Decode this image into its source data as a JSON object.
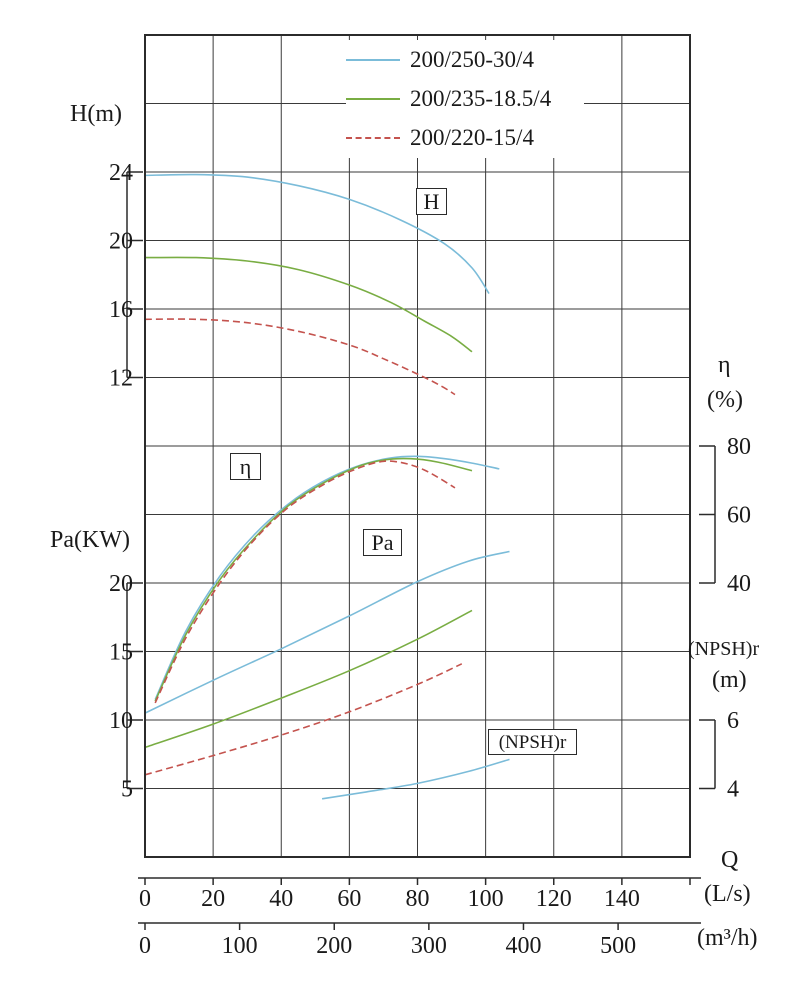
{
  "colors": {
    "blue": "#7bbcd9",
    "green": "#79ad43",
    "red": "#c4534e",
    "grid": "#3a3a3a",
    "frame": "#2b2b2b",
    "text": "#1a1a1a"
  },
  "legend": {
    "items": [
      {
        "label": "200/250-30/4",
        "color_key": "blue",
        "dashed": false
      },
      {
        "label": "200/235-18.5/4",
        "color_key": "green",
        "dashed": false
      },
      {
        "label": "200/220-15/4",
        "color_key": "red",
        "dashed": true
      }
    ]
  },
  "axes": {
    "h": {
      "title": "H(m)",
      "ticks": [
        24,
        20,
        16,
        12
      ]
    },
    "pa": {
      "title": "Pa(KW)",
      "ticks": [
        20,
        15,
        10,
        5
      ]
    },
    "eta": {
      "title": "η",
      "unit": "(%)",
      "ticks": [
        80,
        60,
        40
      ]
    },
    "npsh": {
      "title": "(NPSH)r",
      "unit": "(m)",
      "ticks": [
        6,
        4
      ]
    },
    "q": {
      "title": "Q",
      "unit_ls": "(L/s)",
      "unit_m3h": "(m³/h)",
      "ls_ticks": [
        0,
        20,
        40,
        60,
        80,
        100,
        120,
        140
      ],
      "m3h_ticks": [
        0,
        100,
        200,
        300,
        400,
        500
      ]
    }
  },
  "curve_labels": {
    "h": "H",
    "eta": "η",
    "pa": "Pa",
    "npsh": "(NPSH)r"
  },
  "chart_data": {
    "type": "line",
    "title": "Pump performance curves",
    "xlabel": "Q",
    "x_units": [
      "L/s",
      "m³/h"
    ],
    "x_range_ls": [
      0,
      160
    ],
    "grid": true,
    "y_scales": {
      "H": {
        "label": "H(m)",
        "visible_ticks": [
          24,
          20,
          16,
          12
        ]
      },
      "eta": {
        "label": "η(%)",
        "visible_ticks": [
          80,
          60,
          40
        ]
      },
      "Pa": {
        "label": "Pa(KW)",
        "visible_ticks": [
          20,
          15,
          10,
          5
        ]
      },
      "NPSH": {
        "label": "(NPSH)r(m)",
        "visible_ticks": [
          6,
          4
        ]
      }
    },
    "series": [
      {
        "group": "H",
        "axis": "H",
        "model": "200/250-30/4",
        "color_key": "blue",
        "dashed": false,
        "points": [
          [
            0,
            23.8
          ],
          [
            15,
            23.85
          ],
          [
            30,
            23.7
          ],
          [
            45,
            23.2
          ],
          [
            60,
            22.4
          ],
          [
            75,
            21.2
          ],
          [
            88,
            19.8
          ],
          [
            96,
            18.4
          ],
          [
            101,
            16.9
          ]
        ]
      },
      {
        "group": "H",
        "axis": "H",
        "model": "200/235-18.5/4",
        "color_key": "green",
        "dashed": false,
        "points": [
          [
            0,
            19.0
          ],
          [
            15,
            19.0
          ],
          [
            30,
            18.8
          ],
          [
            45,
            18.3
          ],
          [
            60,
            17.4
          ],
          [
            72,
            16.4
          ],
          [
            82,
            15.3
          ],
          [
            90,
            14.4
          ],
          [
            96,
            13.5
          ]
        ]
      },
      {
        "group": "H",
        "axis": "H",
        "model": "200/220-15/4",
        "color_key": "red",
        "dashed": true,
        "points": [
          [
            0,
            15.4
          ],
          [
            15,
            15.4
          ],
          [
            30,
            15.2
          ],
          [
            45,
            14.7
          ],
          [
            60,
            13.9
          ],
          [
            70,
            13.1
          ],
          [
            80,
            12.2
          ],
          [
            87,
            11.5
          ],
          [
            91,
            11.0
          ]
        ]
      },
      {
        "group": "eta",
        "axis": "eta",
        "model": "200/250-30/4",
        "color_key": "blue",
        "dashed": false,
        "points": [
          [
            3,
            6
          ],
          [
            12,
            26
          ],
          [
            22,
            42
          ],
          [
            32,
            54
          ],
          [
            42,
            63
          ],
          [
            52,
            69.5
          ],
          [
            62,
            74
          ],
          [
            72,
            76.5
          ],
          [
            80,
            77
          ],
          [
            88,
            76.3
          ],
          [
            96,
            75
          ],
          [
            104,
            73.3
          ]
        ]
      },
      {
        "group": "eta",
        "axis": "eta",
        "model": "200/235-18.5/4",
        "color_key": "green",
        "dashed": false,
        "points": [
          [
            3,
            5.5
          ],
          [
            12,
            25
          ],
          [
            22,
            41
          ],
          [
            32,
            53
          ],
          [
            42,
            62.5
          ],
          [
            52,
            69
          ],
          [
            62,
            73.8
          ],
          [
            70,
            75.9
          ],
          [
            78,
            76.3
          ],
          [
            86,
            75.3
          ],
          [
            96,
            72.8
          ]
        ]
      },
      {
        "group": "eta",
        "axis": "eta",
        "model": "200/220-15/4",
        "color_key": "red",
        "dashed": true,
        "points": [
          [
            3,
            5
          ],
          [
            12,
            24
          ],
          [
            22,
            40
          ],
          [
            32,
            52.5
          ],
          [
            42,
            62
          ],
          [
            52,
            68.5
          ],
          [
            60,
            72.5
          ],
          [
            68,
            75.2
          ],
          [
            74,
            75.4
          ],
          [
            82,
            73
          ],
          [
            91,
            67.8
          ]
        ]
      },
      {
        "group": "Pa",
        "axis": "Pa",
        "model": "200/250-30/4",
        "color_key": "blue",
        "dashed": false,
        "points": [
          [
            0,
            10.5
          ],
          [
            20,
            12.9
          ],
          [
            40,
            15.2
          ],
          [
            60,
            17.6
          ],
          [
            80,
            20.1
          ],
          [
            95,
            21.6
          ],
          [
            107,
            22.3
          ]
        ]
      },
      {
        "group": "Pa",
        "axis": "Pa",
        "model": "200/235-18.5/4",
        "color_key": "green",
        "dashed": false,
        "points": [
          [
            0,
            8.0
          ],
          [
            20,
            9.7
          ],
          [
            40,
            11.6
          ],
          [
            60,
            13.6
          ],
          [
            80,
            15.9
          ],
          [
            96,
            18.0
          ]
        ]
      },
      {
        "group": "Pa",
        "axis": "Pa",
        "model": "200/220-15/4",
        "color_key": "red",
        "dashed": true,
        "points": [
          [
            0,
            6.0
          ],
          [
            20,
            7.4
          ],
          [
            40,
            8.9
          ],
          [
            60,
            10.6
          ],
          [
            80,
            12.6
          ],
          [
            93,
            14.1
          ]
        ]
      },
      {
        "group": "NPSH",
        "axis": "NPSH",
        "model": "200/250-30/4",
        "color_key": "blue",
        "dashed": false,
        "points": [
          [
            52,
            3.7
          ],
          [
            65,
            3.9
          ],
          [
            80,
            4.15
          ],
          [
            95,
            4.5
          ],
          [
            107,
            4.85
          ]
        ]
      }
    ]
  }
}
